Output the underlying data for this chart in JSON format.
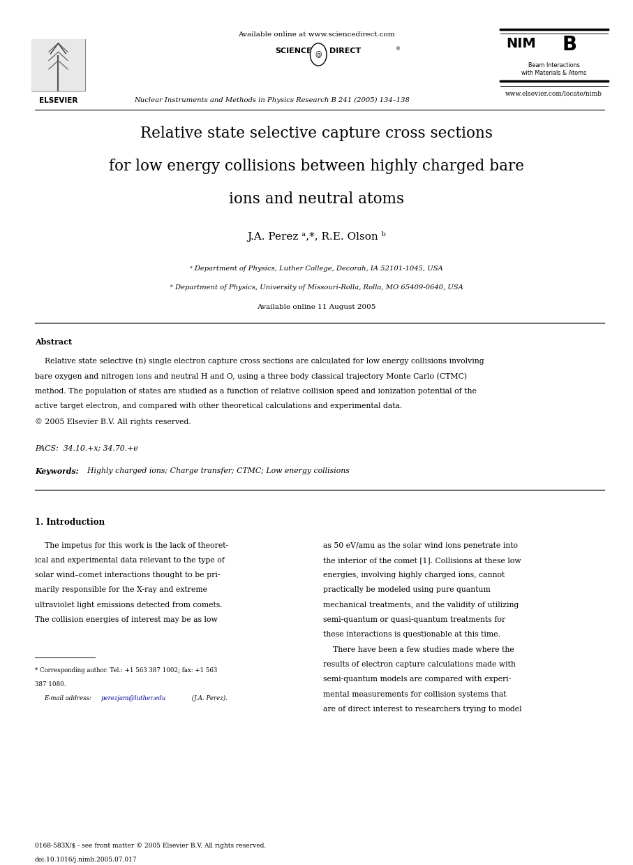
{
  "page_width": 9.07,
  "page_height": 12.38,
  "background_color": "#ffffff",
  "header_available": "Available online at www.sciencedirect.com",
  "header_journal": "Nuclear Instruments and Methods in Physics Research B 241 (2005) 134–138",
  "header_website": "www.elsevier.com/locate/nimb",
  "header_elsevier": "ELSEVIER",
  "header_nim": "NIM",
  "header_b": "B",
  "header_beam": "Beam Interactions\nwith Materials & Atoms",
  "header_scidir1": "SCIENCE",
  "header_scidir2": "DIRECT",
  "title_line1": "Relative state selective capture cross sections",
  "title_line2": "for low energy collisions between highly charged bare",
  "title_line3": "ions and neutral atoms",
  "author_line": "J.A. Perez ᵃ,*, R.E. Olson ᵇ",
  "affil_a": "ᵃ Department of Physics, Luther College, Decorah, IA 52101-1045, USA",
  "affil_b": "ᵇ Department of Physics, University of Missouri-Rolla, Rolla, MO 65409-0640, USA",
  "online_date": "Available online 11 August 2005",
  "abstract_head": "Abstract",
  "abstract_body_lines": [
    "    Relative state selective (n) single electron capture cross sections are calculated for low energy collisions involving",
    "bare oxygen and nitrogen ions and neutral H and O, using a three body classical trajectory Monte Carlo (CTMC)",
    "method. The population of states are studied as a function of relative collision speed and ionization potential of the",
    "active target electron, and compared with other theoretical calculations and experimental data.",
    "© 2005 Elsevier B.V. All rights reserved."
  ],
  "pacs": "PACS:  34.10.+x; 34.70.+e",
  "kw_bold": "Keywords:",
  "kw_rest": "  Highly charged ions; Charge transfer; CTMC; Low energy collisions",
  "sec1_title": "1. Introduction",
  "col1_lines": [
    "    The impetus for this work is the lack of theoret-",
    "ical and experimental data relevant to the type of",
    "solar wind–comet interactions thought to be pri-",
    "marily responsible for the X-ray and extreme",
    "ultraviolet light emissions detected from comets.",
    "The collision energies of interest may be as low"
  ],
  "col2_lines": [
    "as 50 eV/amu as the solar wind ions penetrate into",
    "the interior of the comet [1]. Collisions at these low",
    "energies, involving highly charged ions, cannot",
    "practically be modeled using pure quantum",
    "mechanical treatments, and the validity of utilizing",
    "semi-quantum or quasi-quantum treatments for",
    "these interactions is questionable at this time.",
    "    There have been a few studies made where the",
    "results of electron capture calculations made with",
    "semi-quantum models are compared with experi-",
    "mental measurements for collision systems that",
    "are of direct interest to researchers trying to model"
  ],
  "footnote1": "* Corresponding author. Tel.: +1 563 387 1002; fax: +1 563",
  "footnote2": "387 1080.",
  "footnote_email_label": "E-mail address: ",
  "footnote_email_link": "perezjam@luther.edu",
  "footnote_email_end": " (J.A. Perez).",
  "footer1": "0168-583X/$ - see front matter © 2005 Elsevier B.V. All rights reserved.",
  "footer2": "doi:10.1016/j.nimb.2005.07.017",
  "link_color": "#000099",
  "text_color": "#000000",
  "line_color": "#000000"
}
